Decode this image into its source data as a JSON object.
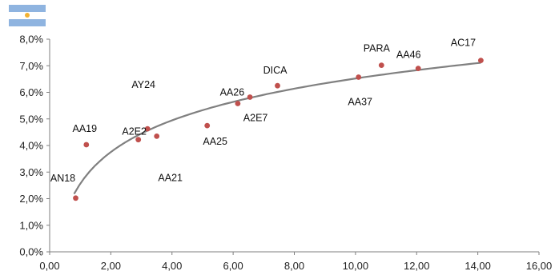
{
  "flag": {
    "icon": "argentina-flag-icon",
    "colors": [
      "#8fb4e0",
      "#ffffff",
      "#f2b233"
    ]
  },
  "chart_data": {
    "type": "scatter",
    "title": "",
    "xlabel": "",
    "ylabel": "",
    "xlim": [
      0,
      16
    ],
    "ylim": [
      0,
      8
    ],
    "x_ticks": [
      "0,00",
      "2,00",
      "4,00",
      "6,00",
      "8,00",
      "10,00",
      "12,00",
      "14,00",
      "16,00"
    ],
    "y_ticks": [
      "0,0%",
      "1,0%",
      "2,0%",
      "3,0%",
      "4,0%",
      "5,0%",
      "6,0%",
      "7,0%",
      "8,0%"
    ],
    "grid": false,
    "legend": "none",
    "point_color": "#c0504d",
    "trend_color": "#808080",
    "points": [
      {
        "label": "AN18",
        "x": 0.85,
        "y": 2.02
      },
      {
        "label": "AA19",
        "x": 1.2,
        "y": 4.03
      },
      {
        "label": "AY24",
        "x": 3.2,
        "y": 4.63
      },
      {
        "label": "A2E2",
        "x": 2.9,
        "y": 4.22
      },
      {
        "label": "AA21",
        "x": 3.5,
        "y": 4.35
      },
      {
        "label": "AA25",
        "x": 5.15,
        "y": 4.75
      },
      {
        "label": "AA26",
        "x": 6.15,
        "y": 5.58
      },
      {
        "label": "A2E7",
        "x": 6.55,
        "y": 5.82
      },
      {
        "label": "DICA",
        "x": 7.45,
        "y": 6.25
      },
      {
        "label": "AA37",
        "x": 10.1,
        "y": 6.57
      },
      {
        "label": "PARA",
        "x": 10.85,
        "y": 7.02
      },
      {
        "label": "AA46",
        "x": 12.05,
        "y": 6.9
      },
      {
        "label": "AC17",
        "x": 14.1,
        "y": 7.2
      }
    ],
    "trendline": {
      "type": "logarithmic",
      "x_range": [
        0.8,
        14.1
      ],
      "a": 2.56,
      "b": 1.72
    }
  }
}
